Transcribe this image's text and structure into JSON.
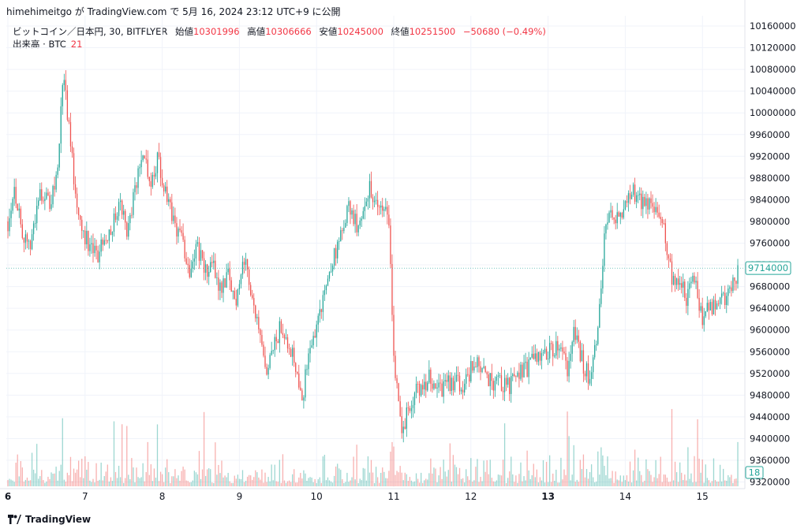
{
  "header": {
    "publish_line": "himehimeitgo が TradingView.com で 5月 16, 2024 23:12 UTC+9 に公開"
  },
  "legend": {
    "symbol": "ビットコイン／日本円, 30, BITFLYER",
    "open_label": "始値",
    "open_value": "10301996",
    "high_label": "高値",
    "high_value": "10306666",
    "low_label": "安値",
    "low_value": "10245000",
    "close_label": "終値",
    "close_value": "10251500",
    "change": "−50680 (−0.49%)"
  },
  "volume_legend": {
    "label": "出来高 · BTC",
    "value": "21"
  },
  "brand": {
    "name": "TradingView"
  },
  "chart_data": {
    "type": "candlestick",
    "interval": "30",
    "price_axis": {
      "side": "right",
      "ticks": [
        10160000,
        10120000,
        10080000,
        10040000,
        10000000,
        9960000,
        9920000,
        9880000,
        9840000,
        9800000,
        9760000,
        9720000,
        9680000,
        9640000,
        9600000,
        9560000,
        9520000,
        9480000,
        9440000,
        9400000,
        9360000,
        9320000
      ],
      "range": [
        9308000,
        10176000
      ],
      "last_price_label": "9714000",
      "volume_label": "18"
    },
    "x_axis": {
      "tick_labels": [
        "6",
        "7",
        "8",
        "9",
        "10",
        "11",
        "12",
        "13",
        "14",
        "15"
      ],
      "bold_labels": [
        "6",
        "13"
      ]
    },
    "close_path": [
      [
        6.0,
        9800000
      ],
      [
        6.08,
        9865000
      ],
      [
        6.15,
        9810000
      ],
      [
        6.25,
        9745000
      ],
      [
        6.35,
        9795000
      ],
      [
        6.42,
        9860000
      ],
      [
        6.55,
        9830000
      ],
      [
        6.65,
        9905000
      ],
      [
        6.72,
        10080000
      ],
      [
        6.8,
        9960000
      ],
      [
        6.85,
        9885000
      ],
      [
        6.95,
        9790000
      ],
      [
        7.05,
        9760000
      ],
      [
        7.15,
        9730000
      ],
      [
        7.25,
        9775000
      ],
      [
        7.35,
        9790000
      ],
      [
        7.45,
        9835000
      ],
      [
        7.55,
        9780000
      ],
      [
        7.65,
        9860000
      ],
      [
        7.75,
        9935000
      ],
      [
        7.85,
        9875000
      ],
      [
        7.95,
        9915000
      ],
      [
        8.05,
        9840000
      ],
      [
        8.15,
        9800000
      ],
      [
        8.25,
        9770000
      ],
      [
        8.35,
        9710000
      ],
      [
        8.45,
        9760000
      ],
      [
        8.55,
        9705000
      ],
      [
        8.65,
        9720000
      ],
      [
        8.75,
        9680000
      ],
      [
        8.85,
        9700000
      ],
      [
        8.95,
        9650000
      ],
      [
        9.05,
        9735000
      ],
      [
        9.15,
        9680000
      ],
      [
        9.25,
        9590000
      ],
      [
        9.35,
        9510000
      ],
      [
        9.45,
        9570000
      ],
      [
        9.55,
        9610000
      ],
      [
        9.65,
        9575000
      ],
      [
        9.75,
        9525000
      ],
      [
        9.82,
        9480000
      ],
      [
        9.92,
        9570000
      ],
      [
        10.02,
        9620000
      ],
      [
        10.12,
        9680000
      ],
      [
        10.22,
        9735000
      ],
      [
        10.32,
        9770000
      ],
      [
        10.42,
        9830000
      ],
      [
        10.52,
        9790000
      ],
      [
        10.62,
        9840000
      ],
      [
        10.7,
        9860000
      ],
      [
        10.78,
        9820000
      ],
      [
        10.88,
        9830000
      ],
      [
        10.94,
        9790000
      ],
      [
        10.97,
        9690000
      ],
      [
        11.0,
        9540000
      ],
      [
        11.05,
        9500000
      ],
      [
        11.1,
        9420000
      ],
      [
        11.2,
        9450000
      ],
      [
        11.3,
        9490000
      ],
      [
        11.45,
        9510000
      ],
      [
        11.6,
        9490000
      ],
      [
        11.75,
        9505000
      ],
      [
        11.9,
        9500000
      ],
      [
        12.05,
        9540000
      ],
      [
        12.2,
        9510000
      ],
      [
        12.35,
        9500000
      ],
      [
        12.5,
        9495000
      ],
      [
        12.65,
        9520000
      ],
      [
        12.8,
        9540000
      ],
      [
        12.95,
        9550000
      ],
      [
        13.05,
        9570000
      ],
      [
        13.15,
        9560000
      ],
      [
        13.25,
        9530000
      ],
      [
        13.35,
        9600000
      ],
      [
        13.45,
        9540000
      ],
      [
        13.55,
        9510000
      ],
      [
        13.65,
        9600000
      ],
      [
        13.72,
        9760000
      ],
      [
        13.8,
        9820000
      ],
      [
        13.9,
        9800000
      ],
      [
        14.0,
        9840000
      ],
      [
        14.1,
        9860000
      ],
      [
        14.2,
        9830000
      ],
      [
        14.3,
        9830000
      ],
      [
        14.4,
        9810000
      ],
      [
        14.5,
        9790000
      ],
      [
        14.6,
        9700000
      ],
      [
        14.7,
        9690000
      ],
      [
        14.8,
        9660000
      ],
      [
        14.9,
        9690000
      ],
      [
        15.0,
        9620000
      ],
      [
        15.1,
        9640000
      ],
      [
        15.2,
        9650000
      ],
      [
        15.3,
        9660000
      ],
      [
        15.4,
        9690000
      ],
      [
        15.47,
        9714000
      ]
    ]
  }
}
